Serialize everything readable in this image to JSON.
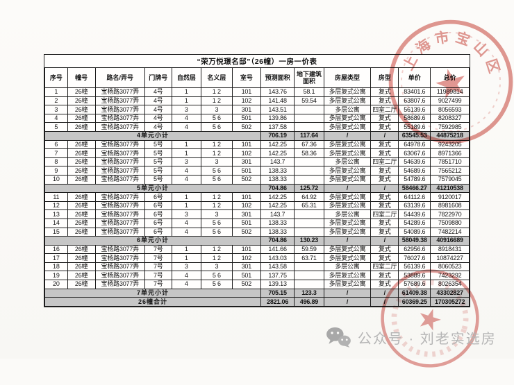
{
  "title": "“荣万悦璟名邸”（26幢）一房一价表",
  "table": {
    "headers": [
      "序号",
      "幢号",
      "路名/弄号",
      "门牌号",
      "自然层",
      "名义层",
      "室号",
      "预测面积",
      "地下建筑面积",
      "房屋类型",
      "房型",
      "单价",
      "总价"
    ],
    "rows": [
      {
        "type": "data",
        "cells": [
          "1",
          "26幢",
          "宝杨路3077弄",
          "4号",
          "1",
          "1 2",
          "101",
          "143.76",
          "58.1",
          "多层复式公寓",
          "复式",
          "83401.6",
          "11989814"
        ]
      },
      {
        "type": "data",
        "cells": [
          "2",
          "26幢",
          "宝杨路3077弄",
          "4号",
          "1",
          "1 2",
          "102",
          "141.48",
          "59.54",
          "多层复式公寓",
          "复式",
          "63807.6",
          "9027499"
        ]
      },
      {
        "type": "data",
        "cells": [
          "3",
          "26幢",
          "宝杨路3077弄",
          "4号",
          "3",
          "3",
          "301",
          "143.51",
          "",
          "多层公寓",
          "四室二厅",
          "56139.6",
          "8056593"
        ]
      },
      {
        "type": "data",
        "cells": [
          "4",
          "26幢",
          "宝杨路3077弄",
          "4号",
          "4",
          "5 6",
          "501",
          "139.86",
          "",
          "多层复式公寓",
          "复式",
          "58689.6",
          "8208327"
        ]
      },
      {
        "type": "data",
        "cells": [
          "5",
          "26幢",
          "宝杨路3077弄",
          "4号",
          "4",
          "5 6",
          "502",
          "137.58",
          "",
          "多层复式公寓",
          "复式",
          "55189.6",
          "7592985"
        ]
      },
      {
        "type": "subtotal",
        "label": "4单元小计",
        "cells": [
          "706.19",
          "117.64",
          "/",
          "/",
          "63545.53",
          "44875218"
        ]
      },
      {
        "type": "data",
        "cells": [
          "6",
          "26幢",
          "宝杨路3077弄",
          "5号",
          "1",
          "1 2",
          "101",
          "142.25",
          "67.36",
          "多层复式公寓",
          "复式",
          "64978.6",
          "9243205"
        ]
      },
      {
        "type": "data",
        "cells": [
          "7",
          "26幢",
          "宝杨路3077弄",
          "5号",
          "1",
          "1 2",
          "102",
          "142.25",
          "58.36",
          "多层复式公寓",
          "复式",
          "63067.6",
          "8971366"
        ]
      },
      {
        "type": "data",
        "cells": [
          "8",
          "26幢",
          "宝杨路3077弄",
          "5号",
          "3",
          "3",
          "301",
          "143.7",
          "",
          "多层公寓",
          "四室二厅",
          "54639.6",
          "7851710"
        ]
      },
      {
        "type": "data",
        "cells": [
          "9",
          "26幢",
          "宝杨路3077弄",
          "5号",
          "4",
          "5 6",
          "501",
          "138.33",
          "",
          "多层复式公寓",
          "复式",
          "54689.6",
          "7565212"
        ]
      },
      {
        "type": "data",
        "cells": [
          "10",
          "26幢",
          "宝杨路3077弄",
          "5号",
          "4",
          "5 6",
          "502",
          "138.33",
          "",
          "多层复式公寓",
          "复式",
          "54789.6",
          "7579045"
        ]
      },
      {
        "type": "subtotal",
        "label": "5单元小计",
        "cells": [
          "704.86",
          "125.72",
          "/",
          "/",
          "58466.27",
          "41210538"
        ]
      },
      {
        "type": "data",
        "cells": [
          "11",
          "26幢",
          "宝杨路3077弄",
          "6号",
          "1",
          "1 2",
          "101",
          "142.25",
          "64.92",
          "多层复式公寓",
          "复式",
          "64112.6",
          "9120017"
        ]
      },
      {
        "type": "data",
        "cells": [
          "12",
          "26幢",
          "宝杨路3077弄",
          "6号",
          "1",
          "1 2",
          "102",
          "142.25",
          "65.31",
          "多层复式公寓",
          "复式",
          "63139.6",
          "8981608"
        ]
      },
      {
        "type": "data",
        "cells": [
          "13",
          "26幢",
          "宝杨路3077弄",
          "6号",
          "3",
          "3",
          "301",
          "143.7",
          "",
          "多层公寓",
          "四室二厅",
          "54439.6",
          "7822970"
        ]
      },
      {
        "type": "data",
        "cells": [
          "14",
          "26幢",
          "宝杨路3077弄",
          "6号",
          "4",
          "5 6",
          "501",
          "138.33",
          "",
          "多层复式公寓",
          "复式",
          "54289.6",
          "7509880"
        ]
      },
      {
        "type": "data",
        "cells": [
          "15",
          "26幢",
          "宝杨路3077弄",
          "6号",
          "4",
          "5 6",
          "502",
          "138.33",
          "",
          "多层复式公寓",
          "复式",
          "54089.6",
          "7482214"
        ]
      },
      {
        "type": "subtotal",
        "label": "6单元小计",
        "cells": [
          "704.86",
          "130.23",
          "/",
          "/",
          "58049.38",
          "40916689"
        ]
      },
      {
        "type": "data",
        "cells": [
          "16",
          "26幢",
          "宝杨路3077弄",
          "7号",
          "1",
          "1 2",
          "101",
          "141.66",
          "59.59",
          "多层复式公寓",
          "复式",
          "62956.6",
          "8918431"
        ]
      },
      {
        "type": "data",
        "cells": [
          "17",
          "26幢",
          "宝杨路3077弄",
          "7号",
          "1",
          "1 2",
          "102",
          "143.03",
          "63.71",
          "多层复式公寓",
          "复式",
          "76027.6",
          "10874227"
        ]
      },
      {
        "type": "data",
        "cells": [
          "18",
          "26幢",
          "宝杨路3077弄",
          "7号",
          "3",
          "3",
          "301",
          "143.58",
          "",
          "多层公寓",
          "四室二厅",
          "56139.6",
          "8060523"
        ]
      },
      {
        "type": "data",
        "cells": [
          "19",
          "26幢",
          "宝杨路3077弄",
          "7号",
          "4",
          "5 6",
          "501",
          "137.75",
          "",
          "多层复式公寓",
          "复式",
          "53889.6",
          "7423292"
        ]
      },
      {
        "type": "data",
        "cells": [
          "20",
          "26幢",
          "宝杨路3077弄",
          "7号",
          "4",
          "5 6",
          "502",
          "139.13",
          "",
          "多层复式公寓",
          "复式",
          "57689.6",
          "8026354"
        ]
      },
      {
        "type": "subtotal",
        "label": "7单元小计",
        "cells": [
          "705.15",
          "123.3",
          "/",
          "/",
          "61409.38",
          "43302827"
        ]
      },
      {
        "type": "total",
        "label": "26幢合计",
        "cells": [
          "2821.06",
          "496.89",
          "/",
          "/",
          "60369.25",
          "170305272"
        ]
      }
    ]
  },
  "stamps": {
    "top_arc_text": "上海市宝山区",
    "color": "#c9423a",
    "star": "★"
  },
  "watermark": {
    "icon": "wechat-icon",
    "text": "公众号 · 刘老实选房"
  }
}
